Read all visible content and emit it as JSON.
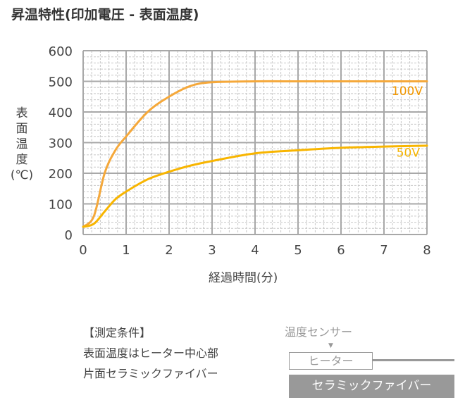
{
  "title": "昇温特性(印加電圧 - 表面温度)",
  "y_axis_label_chars": [
    "表",
    "面",
    "温",
    "度",
    "(℃)"
  ],
  "x_axis_label": "経過時間(分)",
  "measurement_conditions": {
    "heading": "【測定条件】",
    "line1": "表面温度はヒーター中心部",
    "line2": "片面セラミックファイバー"
  },
  "diagram": {
    "sensor_label": "温度センサー",
    "arrow": "▼",
    "heater_label": "ヒーター",
    "fiber_label": "セラミックファイバー"
  },
  "colors": {
    "series_100v_line": "#F5A83A",
    "series_100v_label": "#F39800",
    "series_50v_line": "#F8B500",
    "series_50v_label": "#F5B400",
    "grid_major": "#A8A8A8",
    "grid_minor": "#C8C8C8"
  },
  "chart_data": {
    "type": "line",
    "title": "昇温特性(印加電圧 - 表面温度)",
    "xlabel": "経過時間(分)",
    "ylabel": "表面温度(℃)",
    "xlim": [
      0,
      8
    ],
    "ylim": [
      0,
      600
    ],
    "x_ticks": [
      "0",
      "1",
      "2",
      "3",
      "4",
      "5",
      "6",
      "7",
      "8"
    ],
    "y_ticks": [
      "0",
      "100",
      "200",
      "300",
      "400",
      "500",
      "600"
    ],
    "grid": true,
    "minor_grid_subdivisions": 5,
    "x": [
      0,
      0.25,
      0.5,
      0.75,
      1,
      1.5,
      2,
      2.5,
      3,
      4,
      5,
      6,
      7,
      8
    ],
    "series": [
      {
        "name": "100V",
        "values": [
          25,
          60,
          200,
          275,
          320,
          400,
          450,
          485,
          497,
          500,
          500,
          500,
          500,
          500
        ]
      },
      {
        "name": "50V",
        "values": [
          25,
          35,
          75,
          115,
          140,
          180,
          205,
          225,
          240,
          265,
          275,
          283,
          287,
          290
        ]
      }
    ],
    "annotations": [
      {
        "text": "100V",
        "x": 7.5,
        "y": 460
      },
      {
        "text": "50V",
        "x": 7.5,
        "y": 250
      }
    ],
    "legend": "inline labels at right"
  }
}
